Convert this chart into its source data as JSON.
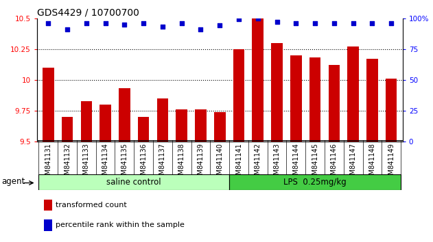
{
  "title": "GDS4429 / 10700700",
  "categories": [
    "GSM841131",
    "GSM841132",
    "GSM841133",
    "GSM841134",
    "GSM841135",
    "GSM841136",
    "GSM841137",
    "GSM841138",
    "GSM841139",
    "GSM841140",
    "GSM841141",
    "GSM841142",
    "GSM841143",
    "GSM841144",
    "GSM841145",
    "GSM841146",
    "GSM841147",
    "GSM841148",
    "GSM841149"
  ],
  "bar_values": [
    10.1,
    9.7,
    9.83,
    9.8,
    9.93,
    9.7,
    9.85,
    9.76,
    9.76,
    9.74,
    10.25,
    10.5,
    10.3,
    10.2,
    10.18,
    10.12,
    10.27,
    10.17,
    10.01
  ],
  "percentile_values": [
    96,
    91,
    96,
    96,
    95,
    96,
    93,
    96,
    91,
    94,
    99,
    100,
    97,
    96,
    96,
    96,
    96,
    96,
    96
  ],
  "bar_color": "#cc0000",
  "dot_color": "#0000cc",
  "ylim_left": [
    9.5,
    10.5
  ],
  "ylim_right": [
    0,
    100
  ],
  "yticks_left": [
    9.5,
    9.75,
    10.0,
    10.25,
    10.5
  ],
  "ytick_labels_left": [
    "9.5",
    "9.75",
    "10",
    "10.25",
    "10.5"
  ],
  "yticks_right": [
    0,
    25,
    50,
    75,
    100
  ],
  "ytick_labels_right": [
    "0",
    "25",
    "50",
    "75",
    "100%"
  ],
  "grid_lines": [
    9.75,
    10.0,
    10.25
  ],
  "saline_count": 10,
  "lps_count": 9,
  "saline_label": "saline control",
  "lps_label": "LPS  0.25mg/kg",
  "agent_label": "agent",
  "legend_bar_label": "transformed count",
  "legend_dot_label": "percentile rank within the sample",
  "saline_color": "#bbffbb",
  "lps_color": "#44cc44",
  "bar_width": 0.6,
  "title_fontsize": 10,
  "tick_fontsize": 7.5
}
